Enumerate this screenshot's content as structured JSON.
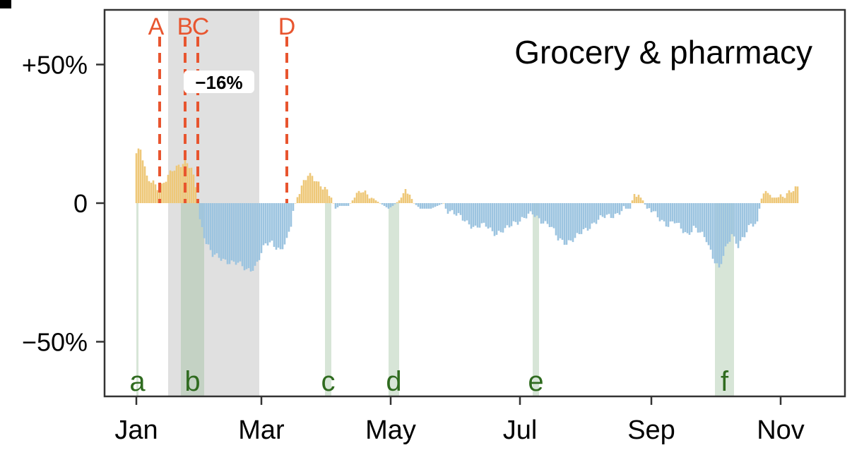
{
  "chart_data": {
    "type": "bar",
    "title": "Grocery & pharmacy",
    "xlabel": "",
    "ylabel": "",
    "ylim": [
      -70,
      70
    ],
    "x_ticks": [
      {
        "label": "Jan",
        "day": 0
      },
      {
        "label": "Mar",
        "day": 59
      },
      {
        "label": "May",
        "day": 120
      },
      {
        "label": "Jul",
        "day": 181
      },
      {
        "label": "Sep",
        "day": 243
      },
      {
        "label": "Nov",
        "day": 304
      }
    ],
    "y_ticks": [
      {
        "label": "+50%",
        "value": 50
      },
      {
        "label": "0",
        "value": 0
      },
      {
        "label": "−50%",
        "value": -50
      }
    ],
    "x_range_days": [
      -15,
      330
    ],
    "positive_color": "#eec879",
    "negative_color": "#9cc4e0",
    "daily_change_keypoints": [
      [
        0,
        18
      ],
      [
        2,
        19
      ],
      [
        5,
        9
      ],
      [
        8,
        8
      ],
      [
        11,
        5
      ],
      [
        14,
        8
      ],
      [
        17,
        12
      ],
      [
        20,
        14
      ],
      [
        23,
        15
      ],
      [
        26,
        12
      ],
      [
        28,
        6
      ],
      [
        30,
        -6
      ],
      [
        33,
        -14
      ],
      [
        36,
        -19
      ],
      [
        40,
        -20
      ],
      [
        44,
        -21
      ],
      [
        48,
        -22
      ],
      [
        52,
        -24
      ],
      [
        56,
        -23
      ],
      [
        58,
        -20
      ],
      [
        61,
        -15
      ],
      [
        64,
        -14
      ],
      [
        68,
        -17
      ],
      [
        71,
        -14
      ],
      [
        73,
        -8
      ],
      [
        74,
        -3
      ],
      [
        76,
        3
      ],
      [
        79,
        8
      ],
      [
        81,
        10
      ],
      [
        83,
        9
      ],
      [
        86,
        7
      ],
      [
        89,
        6
      ],
      [
        92,
        2
      ],
      [
        94,
        -2
      ],
      [
        96,
        -1
      ],
      [
        100,
        -1
      ],
      [
        103,
        2
      ],
      [
        106,
        4
      ],
      [
        110,
        3
      ],
      [
        113,
        1
      ],
      [
        117,
        -1
      ],
      [
        119,
        -2
      ],
      [
        121,
        -1
      ],
      [
        124,
        1
      ],
      [
        127,
        4
      ],
      [
        129,
        3
      ],
      [
        131,
        0
      ],
      [
        134,
        -2
      ],
      [
        139,
        -2
      ],
      [
        145,
        0
      ],
      [
        146,
        -2
      ],
      [
        150,
        -4
      ],
      [
        155,
        -6
      ],
      [
        160,
        -9
      ],
      [
        165,
        -8
      ],
      [
        170,
        -11
      ],
      [
        174,
        -10
      ],
      [
        178,
        -7
      ],
      [
        181,
        -6
      ],
      [
        184,
        -5
      ],
      [
        187,
        -4
      ],
      [
        191,
        -6
      ],
      [
        195,
        -8
      ],
      [
        199,
        -13
      ],
      [
        203,
        -14
      ],
      [
        207,
        -13
      ],
      [
        211,
        -10
      ],
      [
        216,
        -7
      ],
      [
        221,
        -5
      ],
      [
        226,
        -4
      ],
      [
        231,
        -2
      ],
      [
        233,
        -2
      ],
      [
        235,
        4
      ],
      [
        237,
        3
      ],
      [
        239,
        1
      ],
      [
        241,
        -2
      ],
      [
        245,
        -4
      ],
      [
        248,
        -6
      ],
      [
        251,
        -8
      ],
      [
        254,
        -7
      ],
      [
        257,
        -9
      ],
      [
        260,
        -11
      ],
      [
        263,
        -9
      ],
      [
        266,
        -11
      ],
      [
        269,
        -13
      ],
      [
        272,
        -19
      ],
      [
        275,
        -24
      ],
      [
        278,
        -17
      ],
      [
        281,
        -11
      ],
      [
        284,
        -15
      ],
      [
        287,
        -12
      ],
      [
        290,
        -8
      ],
      [
        293,
        -7
      ],
      [
        295,
        3
      ],
      [
        298,
        4
      ],
      [
        300,
        2
      ],
      [
        302,
        2
      ],
      [
        305,
        3
      ],
      [
        308,
        4
      ],
      [
        312,
        5
      ]
    ],
    "gray_shaded_period": {
      "start_day": 15,
      "end_day": 58
    },
    "green_bands": [
      {
        "label": "a",
        "start_day": 0,
        "end_day": 1
      },
      {
        "label": "b",
        "start_day": 21,
        "end_day": 32
      },
      {
        "label": "c",
        "start_day": 89,
        "end_day": 92
      },
      {
        "label": "d",
        "start_day": 119,
        "end_day": 124
      },
      {
        "label": "e",
        "start_day": 187,
        "end_day": 190
      },
      {
        "label": "f",
        "start_day": 273,
        "end_day": 282
      }
    ],
    "event_lines": [
      {
        "label": "A",
        "day": 11
      },
      {
        "label": "B",
        "day": 23
      },
      {
        "label": "C",
        "day": 29
      },
      {
        "label": "D",
        "day": 71
      }
    ],
    "event_line_color": "#e8552f",
    "band_label_color": "#2f6b1f",
    "annotation": "−16%"
  }
}
